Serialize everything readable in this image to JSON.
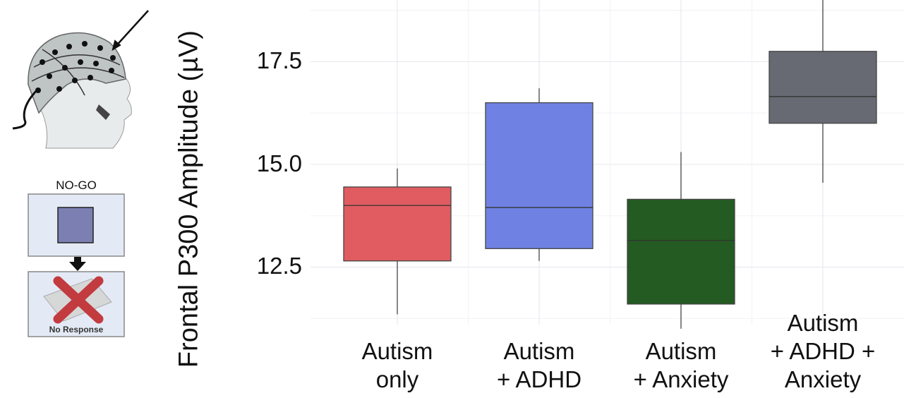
{
  "figure": {
    "nogo_label": "NO-GO",
    "no_response_label": "No Response",
    "icons": [
      "eeg-cap-head-icon",
      "nogo-square-stimulus-icon",
      "down-arrow-icon",
      "no-response-cross-icon"
    ]
  },
  "chart_data": {
    "type": "box",
    "title": "",
    "xlabel": "",
    "ylabel": "Frontal P300 Amplitude (µV)",
    "ylim": [
      11.1,
      19.0
    ],
    "yticks": [
      12.5,
      15.0,
      17.5
    ],
    "ytick_labels": [
      "12.5",
      "15.0",
      "17.5"
    ],
    "grid": true,
    "categories": [
      {
        "lines": [
          "Autism",
          "only"
        ],
        "whisker_low": 11.35,
        "q1": 12.65,
        "median": 14.0,
        "q3": 14.45,
        "whisker_high": 14.9,
        "color": "#e05c61"
      },
      {
        "lines": [
          "Autism",
          "+ ADHD"
        ],
        "whisker_low": 12.65,
        "q1": 12.95,
        "median": 13.95,
        "q3": 16.5,
        "whisker_high": 16.85,
        "color": "#6f82e3"
      },
      {
        "lines": [
          "Autism",
          "+ Anxiety"
        ],
        "whisker_low": 11.0,
        "q1": 11.6,
        "median": 13.15,
        "q3": 14.15,
        "whisker_high": 15.3,
        "color": "#235b22"
      },
      {
        "lines": [
          "Autism",
          "+ ADHD +",
          "Anxiety"
        ],
        "whisker_low": 14.55,
        "q1": 16.0,
        "median": 16.65,
        "q3": 17.75,
        "whisker_high": 19.2,
        "color": "#676a72"
      }
    ]
  }
}
